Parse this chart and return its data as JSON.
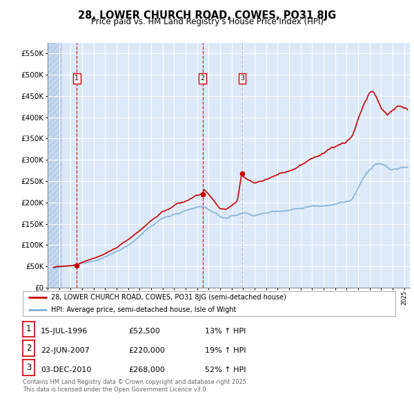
{
  "title": "28, LOWER CHURCH ROAD, COWES, PO31 8JG",
  "subtitle": "Price paid vs. HM Land Registry's House Price Index (HPI)",
  "ytick_values": [
    0,
    50000,
    100000,
    150000,
    200000,
    250000,
    300000,
    350000,
    400000,
    450000,
    500000,
    550000
  ],
  "ylim": [
    0,
    575000
  ],
  "xlim_start": 1994.0,
  "xlim_end": 2025.5,
  "background_color": "#dce9f8",
  "hatch_color": "#c5d8f0",
  "grid_color": "#ffffff",
  "sale_dates": [
    1996.54,
    2007.47,
    2010.92
  ],
  "sale_prices": [
    52500,
    220000,
    268000
  ],
  "sale_labels": [
    "1",
    "2",
    "3"
  ],
  "legend_line1": "28, LOWER CHURCH ROAD, COWES, PO31 8JG (semi-detached house)",
  "legend_line2": "HPI: Average price, semi-detached house, Isle of Wight",
  "table_data": [
    [
      "1",
      "15-JUL-1996",
      "£52,500",
      "13% ↑ HPI"
    ],
    [
      "2",
      "22-JUN-2007",
      "£220,000",
      "19% ↑ HPI"
    ],
    [
      "3",
      "03-DEC-2010",
      "£268,000",
      "52% ↑ HPI"
    ]
  ],
  "footer": "Contains HM Land Registry data © Crown copyright and database right 2025.\nThis data is licensed under the Open Government Licence v3.0.",
  "red_color": "#cc0000",
  "blue_color": "#7aadd4",
  "sale3_vline_color": "#aaaaaa"
}
